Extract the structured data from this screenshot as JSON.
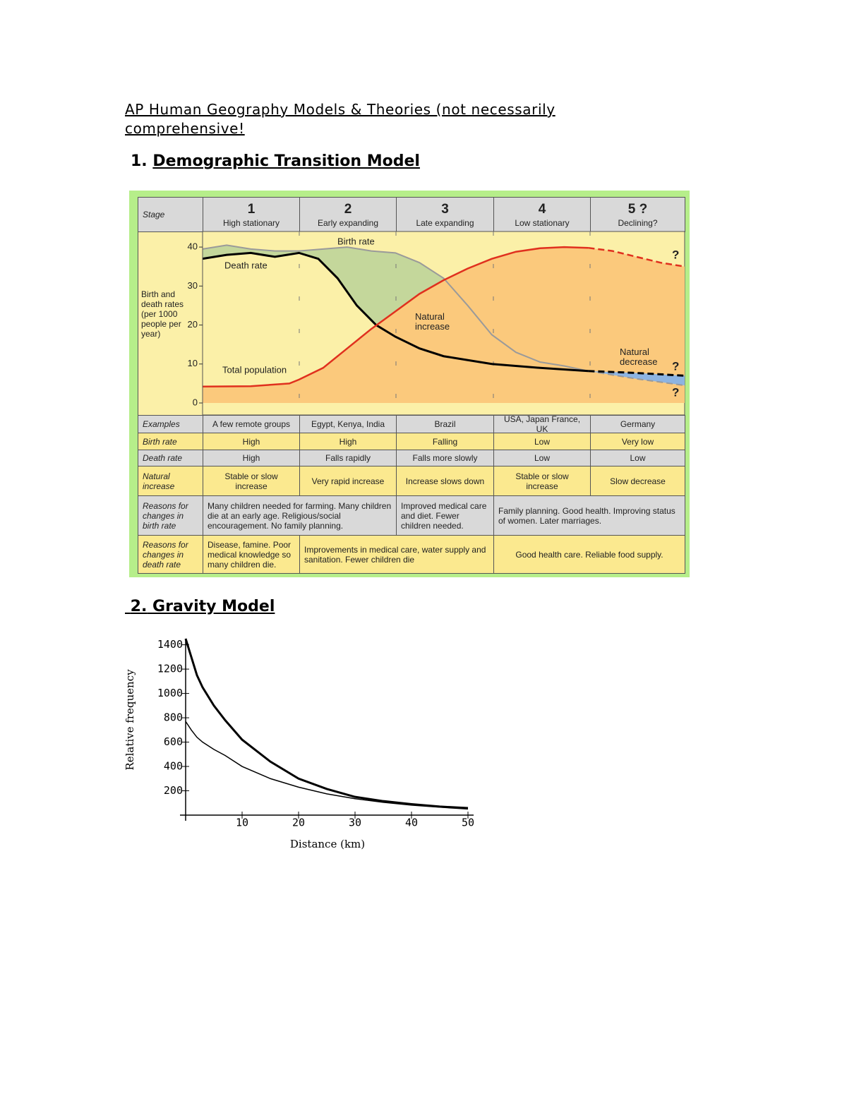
{
  "title": "AP Human Geography Models & Theories (not necessarily comprehensive!",
  "sections": [
    {
      "number": "1.",
      "heading": "Demographic Transition Model"
    },
    {
      "number": "2.",
      "heading": "Gravity Model"
    }
  ],
  "table": {
    "rows": [
      {
        "label": "Examples",
        "cells": [
          "A few remote groups",
          "Egypt, Kenya, India",
          "Brazil",
          "USA, Japan France, UK",
          "Germany"
        ]
      },
      {
        "label": "Birth rate",
        "cells": [
          "High",
          "High",
          "Falling",
          "Low",
          "Very low"
        ]
      },
      {
        "label": "Death rate",
        "cells": [
          "High",
          "Falls rapidly",
          "Falls more slowly",
          "Low",
          "Low"
        ]
      },
      {
        "label": "Natural increase",
        "cells": [
          "Stable or slow increase",
          "Very rapid increase",
          "Increase slows down",
          "Stable or slow increase",
          "Slow decrease"
        ]
      },
      {
        "label": "Reasons for changes in birth rate",
        "cells": [
          "Many children needed for farming. Many children die at an early age. Religious/social encouragement. No family planning.",
          "Improved medical care and diet. Fewer children needed.",
          "Family planning. Good health. Improving status of women. Later marriages."
        ]
      },
      {
        "label": "Reasons for changes in death rate",
        "cells": [
          "Disease, famine. Poor medical knowledge so many children die.",
          "Improvements in medical care, water supply and sanitation. Fewer children die",
          "Good health care. Reliable food supply."
        ]
      }
    ]
  },
  "chart_data": [
    {
      "type": "area",
      "stage_header": "Stage",
      "stages": [
        {
          "number": "1",
          "name": "High stationary"
        },
        {
          "number": "2",
          "name": "Early expanding"
        },
        {
          "number": "3",
          "name": "Late expanding"
        },
        {
          "number": "4",
          "name": "Low stationary"
        },
        {
          "number": "5 ?",
          "name": "Declining?"
        }
      ],
      "y_label": "Birth and death rates (per 1000 people per year)",
      "xlim": [
        0,
        5
      ],
      "ylim": [
        0,
        44
      ],
      "yticks": [
        0,
        10,
        20,
        30,
        40
      ],
      "annotations": [
        "Natural increase",
        "Natural decrease"
      ],
      "question_marks": [
        "?",
        "?",
        "?"
      ],
      "fill_colors": {
        "background": "#fbf0a8",
        "natural_increase": "#c4d79b",
        "population": "#fbc97c",
        "natural_decrease": "#8db4e2"
      },
      "series": [
        {
          "name": "Birth rate",
          "color": "#9a9a9a",
          "x": [
            0,
            0.25,
            0.5,
            0.75,
            1,
            1.25,
            1.5,
            1.75,
            2,
            2.25,
            2.5,
            2.75,
            3,
            3.25,
            3.5,
            3.75,
            4,
            4.5,
            5
          ],
          "values": [
            39.5,
            40.5,
            39.5,
            39,
            39,
            39.5,
            40,
            39,
            38.5,
            36,
            32,
            25,
            17.5,
            13,
            10.5,
            9.5,
            8.2,
            6.2,
            4.5
          ]
        },
        {
          "name": "Death rate",
          "color": "#000000",
          "x": [
            0,
            0.25,
            0.5,
            0.75,
            1,
            1.2,
            1.4,
            1.6,
            1.8,
            2,
            2.25,
            2.5,
            2.75,
            3,
            3.5,
            4,
            4.5,
            5
          ],
          "values": [
            37,
            38,
            38.5,
            37.5,
            38.5,
            37,
            32,
            25,
            20,
            17,
            14,
            12,
            11,
            10,
            9,
            8.2,
            7.7,
            7
          ]
        },
        {
          "name": "Total population",
          "color": "#e0301e",
          "x": [
            0,
            0.5,
            0.9,
            1,
            1.25,
            1.5,
            1.75,
            2,
            2.25,
            2.5,
            2.75,
            3,
            3.25,
            3.5,
            3.75,
            4,
            4.25,
            4.5,
            4.75,
            5
          ],
          "values": [
            4.2,
            4.3,
            5,
            6,
            9,
            14,
            19,
            23.5,
            28,
            31.5,
            34.5,
            37,
            38.8,
            39.7,
            40,
            39.8,
            39,
            37.5,
            36,
            35
          ]
        }
      ]
    },
    {
      "type": "line",
      "x_label": "Distance (km)",
      "y_label": "Relative frequency",
      "xlim": [
        0,
        50
      ],
      "ylim": [
        0,
        1450
      ],
      "xticks": [
        10,
        20,
        30,
        40,
        50
      ],
      "yticks": [
        200,
        400,
        600,
        800,
        1000,
        1200,
        1400
      ],
      "x": [
        0,
        1,
        2,
        3,
        5,
        7,
        10,
        15,
        20,
        25,
        30,
        35,
        40,
        45,
        50
      ],
      "series": [
        {
          "color": "#000000",
          "values": [
            1450,
            1300,
            1150,
            1050,
            900,
            780,
            620,
            440,
            300,
            215,
            150,
            115,
            90,
            70,
            58
          ]
        },
        {
          "color": "#000000",
          "values": [
            770,
            700,
            640,
            600,
            540,
            490,
            400,
            300,
            230,
            175,
            135,
            105,
            82,
            65,
            50
          ]
        }
      ]
    }
  ]
}
